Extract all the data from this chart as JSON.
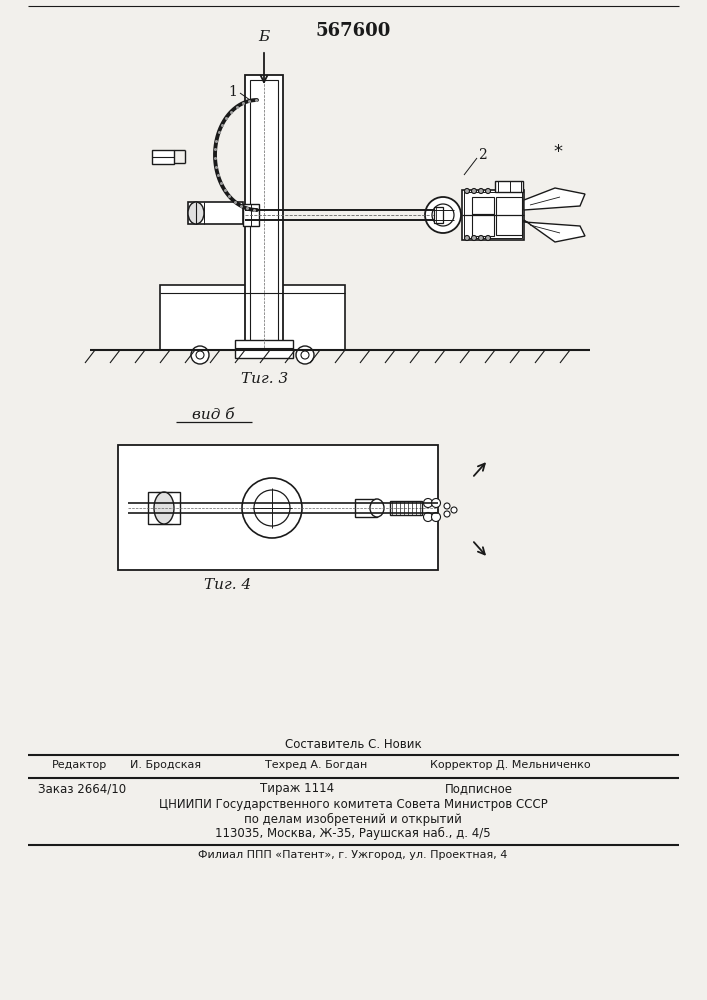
{
  "patent_number": "567600",
  "fig3_label": "Τиг. 3",
  "fig4_label": "Τиг. 4",
  "vid_b_label": "вид б",
  "label_1": "1",
  "label_2": "2",
  "label_b": "Б",
  "footer_line1": "Составитель С. Новик",
  "footer_line2a": "Редактор",
  "footer_line2b": "И. Бродская",
  "footer_line2c": "Техред А. Богдан",
  "footer_line2d": "Корректор Д. Мельниченко",
  "footer_line3a": "Заказ 2664/10",
  "footer_line3b": "Тираж 1114",
  "footer_line3c": "Подписное",
  "footer_line4": "ЦНИИПИ Государственного комитета Совета Министров СССР",
  "footer_line5": "по делам изобретений и открытий",
  "footer_line6": "113035, Москва, Ж-35, Раушская наб., д. 4/5",
  "footer_line7": "Филиал ППП «Патент», г. Ужгород, ул. Проектная, 4",
  "bg_color": "#f2f0ec",
  "line_color": "#1a1a1a"
}
